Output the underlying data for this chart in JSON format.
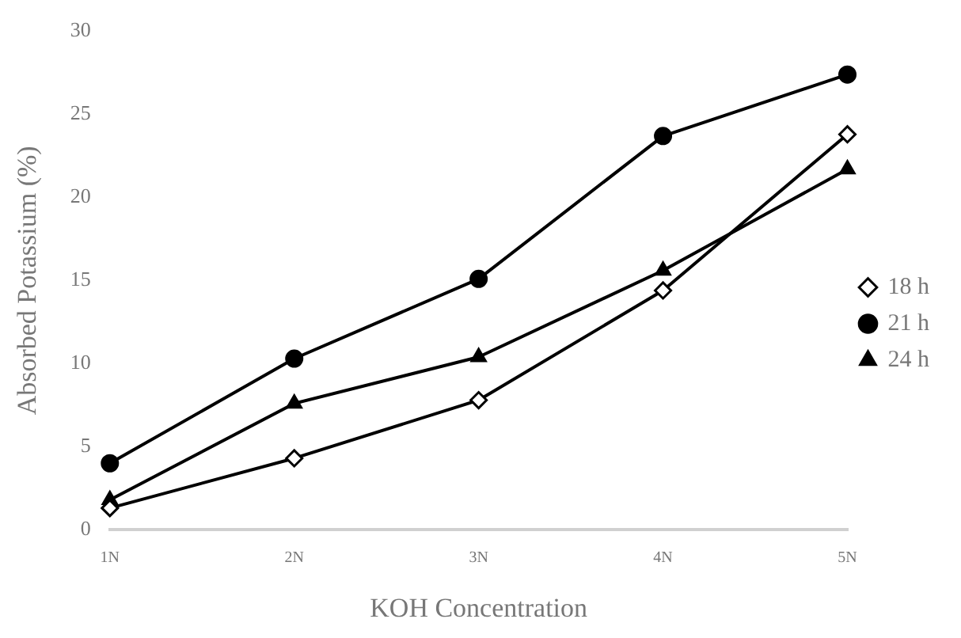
{
  "chart_data": {
    "type": "line",
    "xlabel": "KOH Concentration",
    "ylabel": "Absorbed Potassium (%)",
    "categories": [
      "1N",
      "2N",
      "3N",
      "4N",
      "5N"
    ],
    "ylim": [
      0,
      30
    ],
    "yticks": [
      0,
      5,
      10,
      15,
      20,
      25,
      30
    ],
    "grid": false,
    "legend": "right",
    "line_style": "solid",
    "series": [
      {
        "name": "18 h",
        "color": "#000000",
        "marker": "diamond",
        "values": [
          1.3,
          4.3,
          7.8,
          14.4,
          23.8
        ]
      },
      {
        "name": "21 h",
        "color": "#000000",
        "marker": "circle",
        "values": [
          4.0,
          10.3,
          15.1,
          23.7,
          27.4
        ]
      },
      {
        "name": "24 h",
        "color": "#000000",
        "marker": "triangle",
        "values": [
          1.8,
          7.6,
          10.4,
          15.6,
          21.7
        ]
      }
    ]
  }
}
